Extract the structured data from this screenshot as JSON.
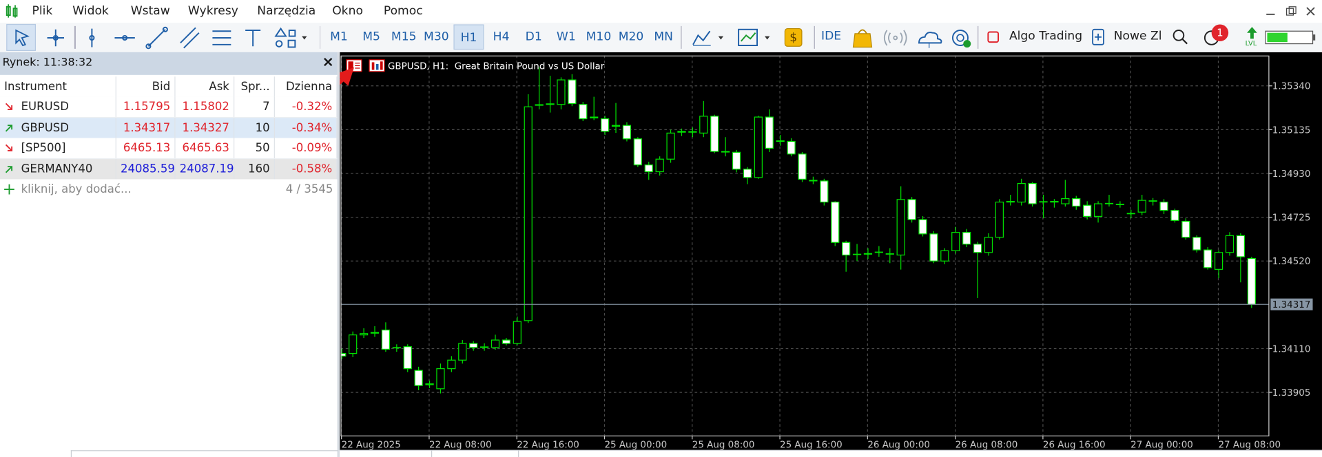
{
  "menu": [
    "Plik",
    "Widok",
    "Wstaw",
    "Wykresy",
    "Narzędzia",
    "Okno",
    "Pomoc"
  ],
  "toolbar": {
    "timeframes": [
      {
        "label": "M1"
      },
      {
        "label": "M5"
      },
      {
        "label": "M15"
      },
      {
        "label": "M30"
      },
      {
        "label": "H1",
        "active": true
      },
      {
        "label": "H4"
      },
      {
        "label": "D1"
      },
      {
        "label": "W1"
      },
      {
        "label": "M10"
      },
      {
        "label": "M20"
      },
      {
        "label": "MN"
      }
    ],
    "ide": "IDE",
    "algo_trading": "Algo Trading",
    "new_order": "Nowe Zl",
    "notifications": "1",
    "level": "LVL"
  },
  "market_watch": {
    "title": "Rynek: 11:38:32",
    "close": "×",
    "columns": [
      "Instrument",
      "Bid",
      "Ask",
      "Spr...",
      "Dzienna"
    ],
    "rows": [
      {
        "symbol": "EURUSD",
        "bid": "1.15795",
        "ask": "1.15802",
        "spread": "7",
        "daily": "-0.32%",
        "trend": "down",
        "price_color": "#e0242c",
        "background": "#ffffff"
      },
      {
        "symbol": "GBPUSD",
        "bid": "1.34317",
        "ask": "1.34327",
        "spread": "10",
        "daily": "-0.34%",
        "trend": "up",
        "price_color": "#e0242c",
        "background": "#dce9f7"
      },
      {
        "symbol": "[SP500]",
        "bid": "6465.13",
        "ask": "6465.63",
        "spread": "50",
        "daily": "-0.09%",
        "trend": "down",
        "price_color": "#e0242c",
        "background": "#ffffff"
      },
      {
        "symbol": "GERMANY40",
        "bid": "24085.59",
        "ask": "24087.19",
        "spread": "160",
        "daily": "-0.58%",
        "trend": "up",
        "price_color": "#1c1cd8",
        "background": "#e6e6e6"
      }
    ],
    "daily_color": "#e0242c",
    "add_hint": "kliknij, aby dodać...",
    "count": "4 / 3545"
  },
  "chart_data": {
    "type": "candlestick",
    "title": "GBPUSD, H1:  Great Britain Pound vs US Dollar",
    "x": [
      "22 Aug 2025",
      null,
      null,
      null,
      null,
      null,
      null,
      null,
      "22 Aug 08:00",
      null,
      null,
      null,
      null,
      null,
      null,
      null,
      "22 Aug 16:00",
      null,
      null,
      null,
      null,
      null,
      null,
      null,
      "25 Aug 00:00",
      null,
      null,
      null,
      null,
      null,
      null,
      null,
      "25 Aug 08:00",
      null,
      null,
      null,
      null,
      null,
      null,
      null,
      "25 Aug 16:00",
      null,
      null,
      null,
      null,
      null,
      null,
      null,
      "26 Aug 00:00",
      null,
      null,
      null,
      null,
      null,
      null,
      null,
      "26 Aug 08:00",
      null,
      null,
      null,
      null,
      null,
      null,
      null,
      "26 Aug 16:00",
      null,
      null,
      null,
      null,
      null,
      null,
      null,
      "27 Aug 00:00",
      null,
      null,
      null,
      null,
      null,
      null,
      null,
      "27 Aug 08:00",
      null,
      null,
      null
    ],
    "open": [
      1.34087,
      1.34087,
      1.34174,
      1.34182,
      1.34197,
      1.34115,
      1.34119,
      1.34008,
      1.33941,
      1.33922,
      1.34016,
      1.34056,
      1.34134,
      1.34115,
      1.34115,
      1.3415,
      1.34134,
      1.34241,
      1.35249,
      1.35253,
      1.35253,
      1.35368,
      1.35253,
      1.3519,
      1.35186,
      1.35151,
      1.35155,
      1.35092,
      1.3497,
      1.34938,
      1.34997,
      1.35123,
      1.35123,
      1.35119,
      1.35198,
      1.35033,
      1.35029,
      1.3495,
      1.34911,
      1.35194,
      1.3508,
      1.3508,
      1.35021,
      1.34895,
      1.34895,
      1.34796,
      1.34607,
      1.3455,
      1.34552,
      1.3456,
      1.34552,
      1.34548,
      1.34808,
      1.34714,
      1.34647,
      1.3452,
      1.34568,
      1.34654,
      1.34599,
      1.3456,
      1.34631,
      1.34796,
      1.34796,
      1.34883,
      1.34796,
      1.34796,
      1.34788,
      1.34812,
      1.34781,
      1.34729,
      1.34788,
      1.34784,
      1.34741,
      1.34749,
      1.348,
      1.34796,
      1.34757,
      1.34706,
      1.34631,
      1.34572,
      1.34481,
      1.3456,
      1.34639,
      1.34532
    ],
    "high": [
      1.3411,
      1.3419,
      1.34205,
      1.34215,
      1.34233,
      1.3413,
      1.3413,
      1.34025,
      1.3396,
      1.3404,
      1.34075,
      1.3415,
      1.34145,
      1.34135,
      1.34175,
      1.3416,
      1.3426,
      1.35301,
      1.35427,
      1.35387,
      1.3538,
      1.35395,
      1.35265,
      1.35289,
      1.352,
      1.3526,
      1.3517,
      1.351,
      1.34985,
      1.3501,
      1.35135,
      1.3514,
      1.35145,
      1.35269,
      1.35205,
      1.351,
      1.3504,
      1.3496,
      1.352,
      1.3523,
      1.3511,
      1.35095,
      1.3503,
      1.34915,
      1.34905,
      1.348,
      1.34615,
      1.346,
      1.3458,
      1.3459,
      1.3458,
      1.3487,
      1.3482,
      1.3473,
      1.3466,
      1.3458,
      1.3468,
      1.3467,
      1.3461,
      1.3465,
      1.3481,
      1.3483,
      1.34905,
      1.3489,
      1.3483,
      1.3481,
      1.349,
      1.34825,
      1.348,
      1.348,
      1.3483,
      1.348,
      1.3476,
      1.3483,
      1.34815,
      1.3481,
      1.34765,
      1.3472,
      1.3464,
      1.34585,
      1.3457,
      1.34655,
      1.3465,
      1.3454
    ],
    "low": [
      1.3406,
      1.3407,
      1.3416,
      1.34165,
      1.34095,
      1.34095,
      1.34,
      1.33915,
      1.33925,
      1.339,
      1.34,
      1.3404,
      1.341,
      1.341,
      1.34105,
      1.34125,
      1.34125,
      1.3423,
      1.3523,
      1.35215,
      1.3523,
      1.35245,
      1.35175,
      1.3518,
      1.3511,
      1.3512,
      1.3508,
      1.3496,
      1.349,
      1.3492,
      1.3498,
      1.35105,
      1.351,
      1.351,
      1.35025,
      1.3501,
      1.34935,
      1.3488,
      1.34905,
      1.3503,
      1.3506,
      1.3501,
      1.3489,
      1.3488,
      1.3478,
      1.3459,
      1.3447,
      1.3452,
      1.3453,
      1.3454,
      1.3451,
      1.3448,
      1.347,
      1.34635,
      1.3451,
      1.34505,
      1.34555,
      1.34585,
      1.34347,
      1.34545,
      1.3462,
      1.3478,
      1.3478,
      1.34775,
      1.3472,
      1.3477,
      1.34775,
      1.3476,
      1.34715,
      1.347,
      1.34775,
      1.3477,
      1.3472,
      1.34735,
      1.3478,
      1.3474,
      1.347,
      1.3462,
      1.3456,
      1.3448,
      1.3444,
      1.34545,
      1.3442,
      1.343
    ],
    "close": [
      1.34075,
      1.34174,
      1.3418,
      1.34186,
      1.34107,
      1.34115,
      1.34016,
      1.33937,
      1.33945,
      1.34016,
      1.34056,
      1.34134,
      1.34115,
      1.34118,
      1.3415,
      1.34134,
      1.34237,
      1.35242,
      1.35252,
      1.35256,
      1.35368,
      1.35257,
      1.35186,
      1.35194,
      1.35127,
      1.35155,
      1.35092,
      1.3497,
      1.34938,
      1.34997,
      1.35119,
      1.35127,
      1.35126,
      1.35198,
      1.35033,
      1.3503,
      1.3495,
      1.34911,
      1.35194,
      1.35048,
      1.35083,
      1.35021,
      1.34903,
      1.34898,
      1.34796,
      1.34607,
      1.34548,
      1.34552,
      1.34555,
      1.34562,
      1.34554,
      1.34808,
      1.34714,
      1.34647,
      1.3452,
      1.34568,
      1.34654,
      1.34599,
      1.3456,
      1.34631,
      1.34796,
      1.34799,
      1.34883,
      1.34788,
      1.34798,
      1.34799,
      1.34812,
      1.34777,
      1.34729,
      1.34788,
      1.3479,
      1.34786,
      1.34743,
      1.34804,
      1.34802,
      1.34757,
      1.3471,
      1.34631,
      1.34572,
      1.34489,
      1.3456,
      1.34639,
      1.3454,
      1.34317
    ],
    "current_price": 1.34317,
    "ylim": [
      1.33701,
      1.35482
    ],
    "yticks": [
      {
        "value": 1.3534,
        "label": "1.35340"
      },
      {
        "value": 1.35135,
        "label": "1.35135"
      },
      {
        "value": 1.3493,
        "label": "1.34930"
      },
      {
        "value": 1.34725,
        "label": "1.34725"
      },
      {
        "value": 1.3452,
        "label": "1.34520"
      },
      {
        "value": 1.3411,
        "label": "1.34110"
      },
      {
        "value": 1.33905,
        "label": "1.33905"
      }
    ],
    "grid": true,
    "background": "#000000",
    "bull_fill": "#000000",
    "bear_fill": "#ffffff",
    "candle_color": "#00e000"
  }
}
